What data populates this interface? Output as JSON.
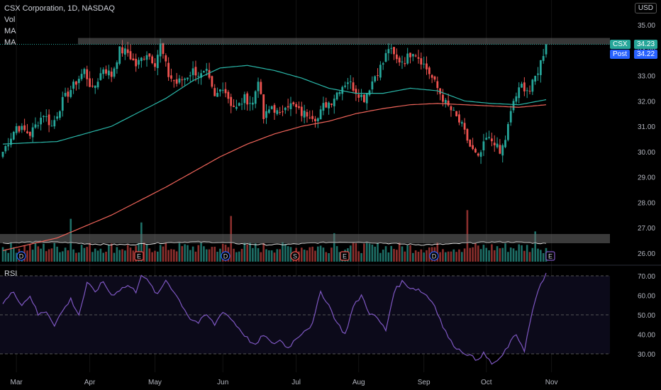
{
  "header": {
    "title": "CSX Corporation, 1D, NASDAQ",
    "indicators": [
      "Vol",
      "MA",
      "MA"
    ],
    "currency": "USD"
  },
  "tags": {
    "last_symbol": "CSX",
    "last_value": "34.23",
    "post_label": "Post",
    "post_value": "34.22"
  },
  "rsi_label": "RSI",
  "colors": {
    "up": "#26a69a",
    "down": "#ef5350",
    "ma_fast": "#2ab7a9",
    "ma_slow": "#f0645a",
    "rsi": "#7e57c2",
    "background": "#000000"
  },
  "event_markers": [
    "D",
    "E",
    "D",
    "S",
    "E",
    "D",
    "E"
  ],
  "chart_data": [
    {
      "type": "candlestick",
      "y_ticks": [
        "35.00",
        "34.00",
        "33.00",
        "32.00",
        "31.00",
        "30.00",
        "29.00",
        "28.00",
        "27.00",
        "26.00"
      ],
      "ylim": [
        25.7,
        35.5
      ],
      "x_ticks": [
        "Mar",
        "Apr",
        "May",
        "Jun",
        "Jul",
        "Aug",
        "Sep",
        "Oct",
        "Nov"
      ],
      "resistance_level": 34.23,
      "last_price": 34.23,
      "post_price": 34.22,
      "close_anchors": [
        [
          0,
          30.0
        ],
        [
          5,
          31.0
        ],
        [
          10,
          30.7
        ],
        [
          15,
          31.5
        ],
        [
          18,
          31.0
        ],
        [
          22,
          32.0
        ],
        [
          26,
          32.6
        ],
        [
          30,
          33.2
        ],
        [
          33,
          32.4
        ],
        [
          37,
          33.3
        ],
        [
          40,
          33.0
        ],
        [
          43,
          34.0
        ],
        [
          46,
          33.9
        ],
        [
          49,
          33.4
        ],
        [
          53,
          33.9
        ],
        [
          56,
          33.5
        ],
        [
          58,
          34.2
        ],
        [
          61,
          33.0
        ],
        [
          64,
          32.7
        ],
        [
          67,
          32.9
        ],
        [
          70,
          33.2
        ],
        [
          73,
          33.0
        ],
        [
          75,
          33.1
        ],
        [
          78,
          32.1
        ],
        [
          81,
          32.6
        ],
        [
          84,
          31.9
        ],
        [
          86,
          31.7
        ],
        [
          89,
          32.1
        ],
        [
          92,
          31.9
        ],
        [
          94,
          32.9
        ],
        [
          96,
          31.3
        ],
        [
          99,
          31.8
        ],
        [
          102,
          31.4
        ],
        [
          104,
          31.9
        ],
        [
          107,
          31.8
        ],
        [
          110,
          31.5
        ],
        [
          113,
          31.5
        ],
        [
          116,
          31.3
        ],
        [
          118,
          31.8
        ],
        [
          121,
          32.0
        ],
        [
          124,
          32.5
        ],
        [
          127,
          32.8
        ],
        [
          130,
          32.4
        ],
        [
          133,
          32.1
        ],
        [
          137,
          33.0
        ],
        [
          140,
          33.5
        ],
        [
          142,
          34.1
        ],
        [
          145,
          33.6
        ],
        [
          148,
          33.6
        ],
        [
          151,
          34.0
        ],
        [
          154,
          33.6
        ],
        [
          157,
          33.1
        ],
        [
          160,
          32.5
        ],
        [
          163,
          31.9
        ],
        [
          166,
          31.5
        ],
        [
          169,
          31.0
        ],
        [
          172,
          30.2
        ],
        [
          175,
          29.7
        ],
        [
          178,
          30.5
        ],
        [
          181,
          30.4
        ],
        [
          183,
          29.9
        ],
        [
          185,
          30.5
        ],
        [
          188,
          32.0
        ],
        [
          191,
          32.6
        ],
        [
          194,
          32.4
        ],
        [
          197,
          33.2
        ],
        [
          200,
          34.23
        ]
      ],
      "series": [
        {
          "name": "MA",
          "points": [
            [
              0,
              30.3
            ],
            [
              20,
              30.4
            ],
            [
              40,
              31.0
            ],
            [
              60,
              32.1
            ],
            [
              70,
              32.8
            ],
            [
              80,
              33.3
            ],
            [
              90,
              33.4
            ],
            [
              100,
              33.2
            ],
            [
              110,
              32.9
            ],
            [
              120,
              32.5
            ],
            [
              130,
              32.3
            ],
            [
              140,
              32.3
            ],
            [
              150,
              32.5
            ],
            [
              160,
              32.4
            ],
            [
              170,
              32.0
            ],
            [
              180,
              31.9
            ],
            [
              190,
              31.85
            ],
            [
              200,
              32.05
            ]
          ]
        },
        {
          "name": "MA",
          "points": [
            [
              0,
              26.1
            ],
            [
              20,
              26.6
            ],
            [
              40,
              27.5
            ],
            [
              60,
              28.6
            ],
            [
              70,
              29.2
            ],
            [
              80,
              29.8
            ],
            [
              90,
              30.3
            ],
            [
              100,
              30.7
            ],
            [
              110,
              31.0
            ],
            [
              120,
              31.2
            ],
            [
              130,
              31.5
            ],
            [
              140,
              31.7
            ],
            [
              150,
              31.85
            ],
            [
              160,
              31.9
            ],
            [
              170,
              31.85
            ],
            [
              180,
              31.8
            ],
            [
              190,
              31.75
            ],
            [
              200,
              31.85
            ]
          ]
        }
      ]
    },
    {
      "type": "line",
      "title": "RSI",
      "y_ticks": [
        "70.00",
        "60.00",
        "50.00",
        "40.00",
        "30.00"
      ],
      "ylim": [
        22,
        75
      ],
      "overbought": 70,
      "midline": 50,
      "oversold": 30,
      "anchors": [
        [
          0,
          56
        ],
        [
          4,
          62
        ],
        [
          7,
          55
        ],
        [
          10,
          60
        ],
        [
          13,
          50
        ],
        [
          16,
          52
        ],
        [
          19,
          45
        ],
        [
          22,
          52
        ],
        [
          25,
          58
        ],
        [
          28,
          50
        ],
        [
          31,
          66
        ],
        [
          34,
          62
        ],
        [
          37,
          67
        ],
        [
          40,
          60
        ],
        [
          43,
          63
        ],
        [
          46,
          65
        ],
        [
          49,
          62
        ],
        [
          51,
          71
        ],
        [
          54,
          66
        ],
        [
          57,
          60
        ],
        [
          60,
          68
        ],
        [
          63,
          62
        ],
        [
          66,
          55
        ],
        [
          69,
          48
        ],
        [
          72,
          46
        ],
        [
          75,
          50
        ],
        [
          78,
          45
        ],
        [
          81,
          52
        ],
        [
          84,
          48
        ],
        [
          87,
          43
        ],
        [
          90,
          38
        ],
        [
          93,
          34
        ],
        [
          96,
          40
        ],
        [
          99,
          35
        ],
        [
          102,
          37
        ],
        [
          105,
          33
        ],
        [
          108,
          38
        ],
        [
          111,
          42
        ],
        [
          114,
          45
        ],
        [
          117,
          62
        ],
        [
          120,
          55
        ],
        [
          123,
          46
        ],
        [
          126,
          40
        ],
        [
          129,
          54
        ],
        [
          132,
          60
        ],
        [
          135,
          51
        ],
        [
          138,
          48
        ],
        [
          141,
          42
        ],
        [
          144,
          62
        ],
        [
          147,
          67
        ],
        [
          150,
          64
        ],
        [
          153,
          63
        ],
        [
          156,
          60
        ],
        [
          159,
          55
        ],
        [
          162,
          44
        ],
        [
          165,
          36
        ],
        [
          168,
          32
        ],
        [
          171,
          30
        ],
        [
          174,
          27
        ],
        [
          177,
          30
        ],
        [
          180,
          25
        ],
        [
          183,
          27
        ],
        [
          186,
          34
        ],
        [
          189,
          40
        ],
        [
          192,
          32
        ],
        [
          195,
          52
        ],
        [
          198,
          66
        ],
        [
          200,
          71
        ]
      ]
    }
  ]
}
